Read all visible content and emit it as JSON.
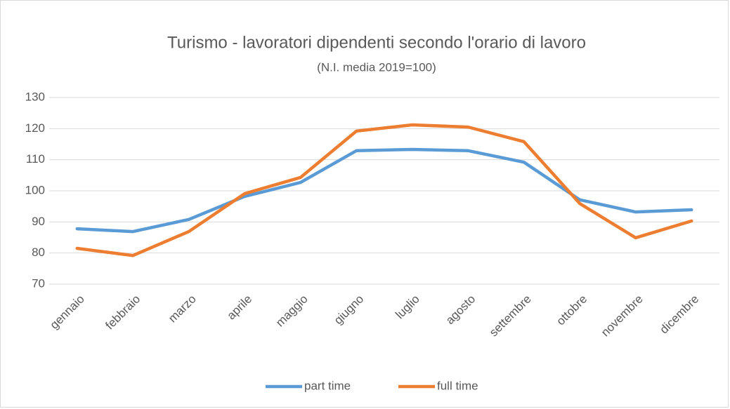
{
  "chart_data": {
    "type": "line",
    "title": "Turismo - lavoratori dipendenti secondo l'orario di lavoro",
    "subtitle": "(N.I. media 2019=100)",
    "categories": [
      "gennaio",
      "febbraio",
      "marzo",
      "aprile",
      "maggio",
      "giugno",
      "luglio",
      "agosto",
      "settembre",
      "ottobre",
      "novembre",
      "dicembre"
    ],
    "series": [
      {
        "name": "part time",
        "color": "#5b9bd5",
        "values": [
          87.8,
          86.9,
          90.8,
          98.2,
          102.7,
          112.9,
          113.3,
          112.9,
          109.2,
          97.1,
          93.2,
          93.9
        ]
      },
      {
        "name": "full time",
        "color": "#ed7d31",
        "values": [
          81.5,
          79.2,
          86.9,
          99.1,
          104.3,
          119.2,
          121.2,
          120.5,
          115.8,
          95.9,
          84.9,
          90.3
        ]
      }
    ],
    "ylim": [
      70,
      130
    ],
    "yticks": [
      70,
      80,
      90,
      100,
      110,
      120,
      130
    ],
    "grid": true,
    "legend": "bottom"
  }
}
